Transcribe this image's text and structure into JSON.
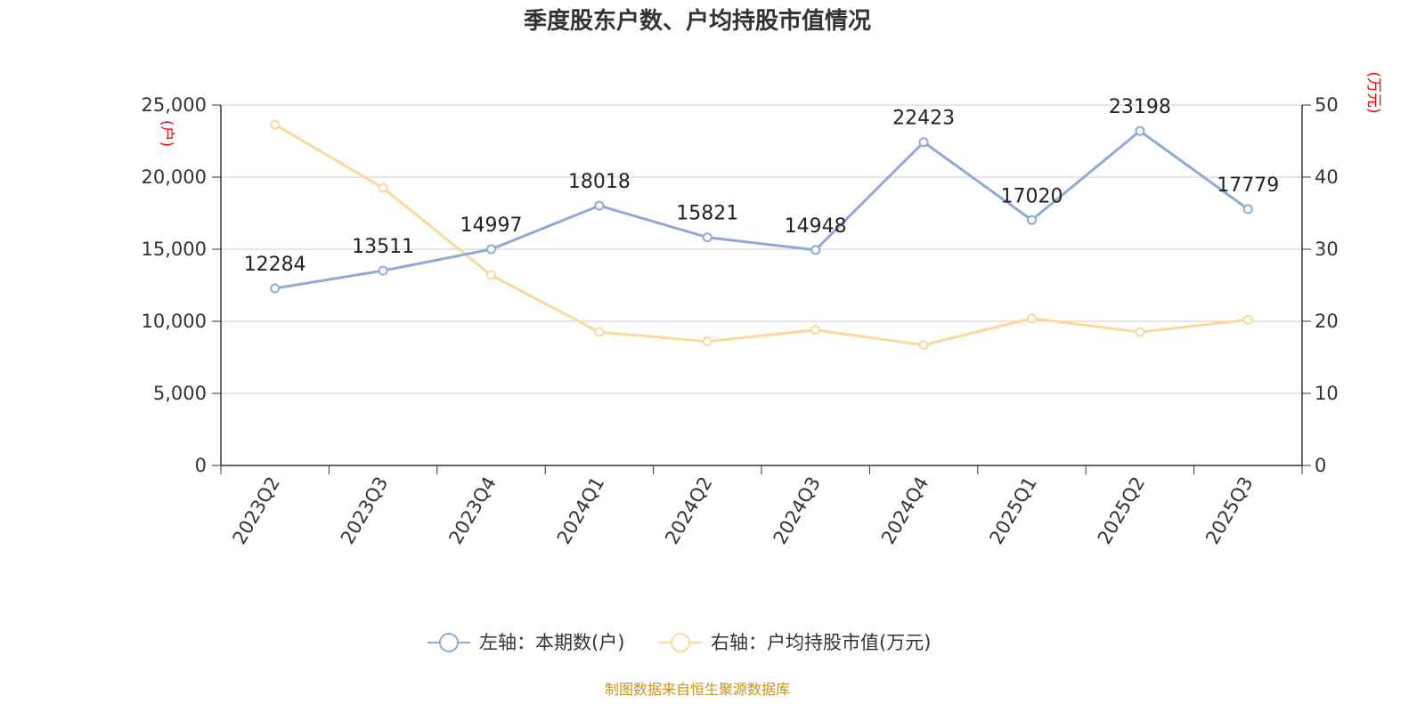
{
  "chart_data": {
    "type": "line",
    "title": "季度股东户数、户均持股市值情况",
    "categories": [
      "2023Q2",
      "2023Q3",
      "2023Q4",
      "2024Q1",
      "2024Q2",
      "2024Q3",
      "2024Q4",
      "2025Q1",
      "2025Q2",
      "2025Q3"
    ],
    "series": [
      {
        "name": "左轴：本期数(户)",
        "axis": "left",
        "color": "#8eaad6",
        "values": [
          12284,
          13511,
          14997,
          18018,
          15821,
          14948,
          22423,
          17020,
          23198,
          17779
        ],
        "data_labels": [
          "12284",
          "13511",
          "14997",
          "18018",
          "15821",
          "14948",
          "22423",
          "17020",
          "23198",
          "17779"
        ]
      },
      {
        "name": "右轴：户均持股市值(万元)",
        "axis": "right",
        "color": "#fcd999",
        "values": [
          47.3,
          38.5,
          26.4,
          18.5,
          17.2,
          18.8,
          16.7,
          20.4,
          18.5,
          20.2
        ]
      }
    ],
    "left_axis": {
      "label": "(户)",
      "ylim": [
        0,
        25000
      ],
      "ticks": [
        "0",
        "5,000",
        "10,000",
        "15,000",
        "20,000",
        "25,000"
      ]
    },
    "right_axis": {
      "label": "(万元)",
      "ylim": [
        0,
        50
      ],
      "ticks": [
        "0",
        "10",
        "20",
        "30",
        "40",
        "50"
      ]
    },
    "grid": true,
    "legend_position": "bottom-center",
    "source": "制图数据来自恒生聚源数据库"
  }
}
